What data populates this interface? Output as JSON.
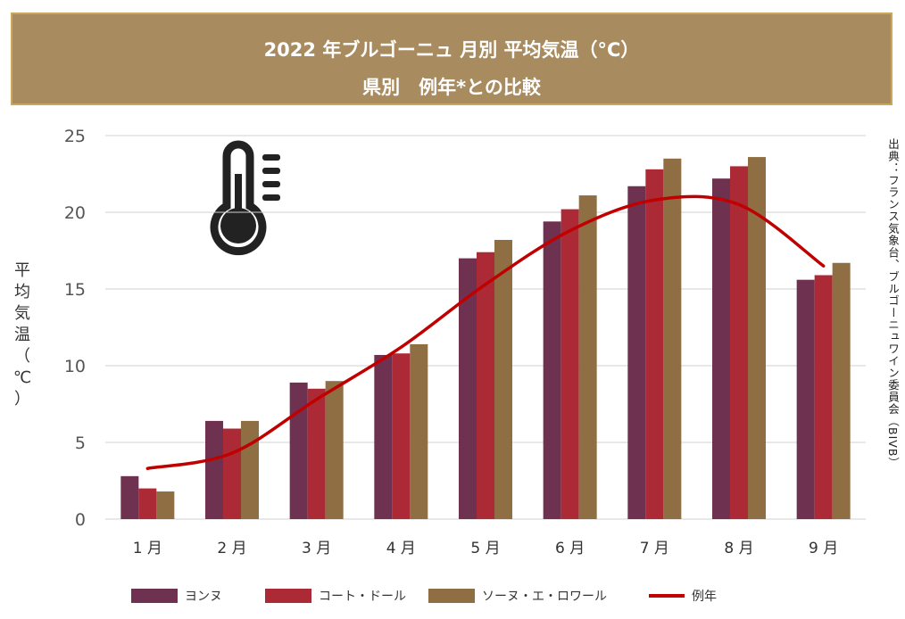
{
  "title": {
    "line1": "2022 年ブルゴーニュ 月別 平均気温（°C）",
    "line2": "県別　例年*との比較"
  },
  "y_axis_label": [
    "平",
    "均",
    "気",
    "温",
    "（",
    "℃",
    "）"
  ],
  "source_note": "出典：フランス気象台、ブルゴーニュワイン委員会（BIVB）",
  "icon": "thermometer-icon",
  "chart_data": {
    "type": "bar",
    "title": "2022 年ブルゴーニュ 月別 平均気温（°C） 県別 例年*との比較",
    "xlabel": "",
    "ylabel": "平均気温（℃）",
    "ylim": [
      0,
      25
    ],
    "yticks": [
      "0",
      "5",
      "10",
      "15",
      "20",
      "25"
    ],
    "grid": true,
    "legend_position": "bottom",
    "categories": [
      "1 月",
      "2 月",
      "3 月",
      "4 月",
      "5 月",
      "6 月",
      "7 月",
      "8 月",
      "9 月"
    ],
    "series": [
      {
        "name": "ヨンヌ",
        "type": "bar",
        "color": "#6e3150",
        "values": [
          2.8,
          6.4,
          8.9,
          10.7,
          17.0,
          19.4,
          21.7,
          22.2,
          15.6
        ]
      },
      {
        "name": "コート・ドール",
        "type": "bar",
        "color": "#ab2a36",
        "values": [
          2.0,
          5.9,
          8.5,
          10.8,
          17.4,
          20.2,
          22.8,
          23.0,
          15.9
        ]
      },
      {
        "name": "ソーヌ・エ・ロワール",
        "type": "bar",
        "color": "#8e6e42",
        "values": [
          1.8,
          6.4,
          9.0,
          11.4,
          18.2,
          21.1,
          23.5,
          23.6,
          16.7
        ]
      },
      {
        "name": "例年",
        "type": "line",
        "color": "#c00000",
        "values": [
          3.3,
          4.3,
          7.8,
          11.2,
          15.3,
          18.8,
          20.8,
          20.5,
          16.5
        ]
      }
    ]
  }
}
